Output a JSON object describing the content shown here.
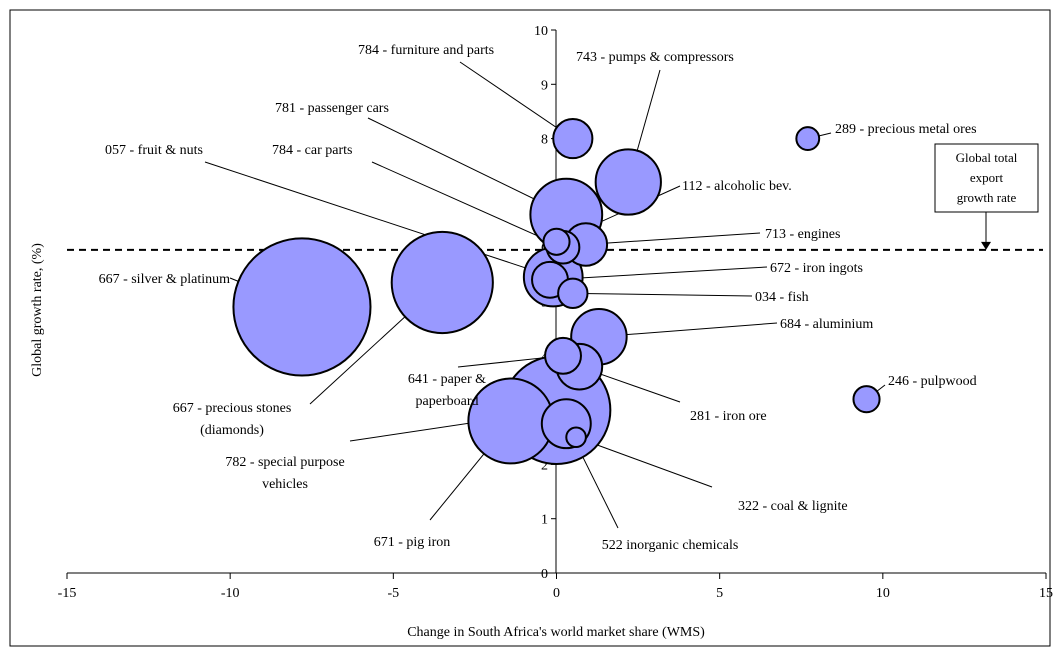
{
  "chart_data": {
    "type": "scatter",
    "title": "",
    "xlabel": "Change in South Africa's world market share (WMS)",
    "ylabel": "Global growth rate, (%)",
    "xlim": [
      -15,
      15
    ],
    "ylim": [
      0,
      10
    ],
    "x_ticks": [
      -15,
      -10,
      -5,
      0,
      5,
      10,
      15
    ],
    "y_ticks": [
      0,
      1,
      2,
      3,
      4,
      5,
      6,
      7,
      8,
      9,
      10
    ],
    "grid": false,
    "bubble_color": "#9999ff",
    "reference_line": {
      "y": 5.95,
      "style": "dashed",
      "label_lines": [
        "Global total",
        "export",
        "growth rate"
      ]
    },
    "points": [
      {
        "label": [
          "667 - silver & platinum"
        ],
        "x": -7.8,
        "y": 4.9,
        "size": 2.1
      },
      {
        "label": [
          "667 - precious stones",
          "(diamonds)"
        ],
        "x": -3.5,
        "y": 5.35,
        "size": 1.55
      },
      {
        "label": [
          "782 - special purpose",
          "vehicles"
        ],
        "x": 0.0,
        "y": 3.0,
        "size": 1.65
      },
      {
        "label": [
          "671 - pig iron"
        ],
        "x": -1.4,
        "y": 2.8,
        "size": 1.3
      },
      {
        "label": [
          "522 inorganic chemicals"
        ],
        "x": 0.3,
        "y": 2.75,
        "size": 0.75
      },
      {
        "label": [
          "322 - coal & lignite"
        ],
        "x": 0.6,
        "y": 2.5,
        "size": 0.3
      },
      {
        "label": [
          "281 - iron ore"
        ],
        "x": 0.7,
        "y": 3.8,
        "size": 0.7
      },
      {
        "label": [
          "641 - paper &",
          "paperboard"
        ],
        "x": 0.2,
        "y": 4.0,
        "size": 0.55
      },
      {
        "label": [
          "684 - aluminium"
        ],
        "x": 1.3,
        "y": 4.35,
        "size": 0.85
      },
      {
        "label": [
          "034 - fish"
        ],
        "x": 0.5,
        "y": 5.15,
        "size": 0.45
      },
      {
        "label": [
          "672 - iron ingots"
        ],
        "x": -0.2,
        "y": 5.4,
        "size": 0.55
      },
      {
        "label": [
          "057 - fruit & nuts"
        ],
        "x": -0.1,
        "y": 5.45,
        "size": 0.9
      },
      {
        "label": [
          "713 - engines"
        ],
        "x": 0.9,
        "y": 6.05,
        "size": 0.65
      },
      {
        "label": [
          "784 - car parts"
        ],
        "x": 0.2,
        "y": 6.0,
        "size": 0.5
      },
      {
        "label": [
          "781 - passenger cars"
        ],
        "x": 0.3,
        "y": 6.6,
        "size": 1.1
      },
      {
        "label": [
          "112 - alcoholic bev."
        ],
        "x": 0.0,
        "y": 6.1,
        "size": 0.4
      },
      {
        "label": [
          "784 - furniture and parts"
        ],
        "x": 0.5,
        "y": 8.0,
        "size": 0.6
      },
      {
        "label": [
          "743 - pumps & compressors"
        ],
        "x": 2.2,
        "y": 7.2,
        "size": 1.0
      },
      {
        "label": [
          "289 - precious metal ores"
        ],
        "x": 7.7,
        "y": 8.0,
        "size": 0.35
      },
      {
        "label": [
          "246 - pulpwood"
        ],
        "x": 9.5,
        "y": 3.2,
        "size": 0.4
      }
    ]
  }
}
